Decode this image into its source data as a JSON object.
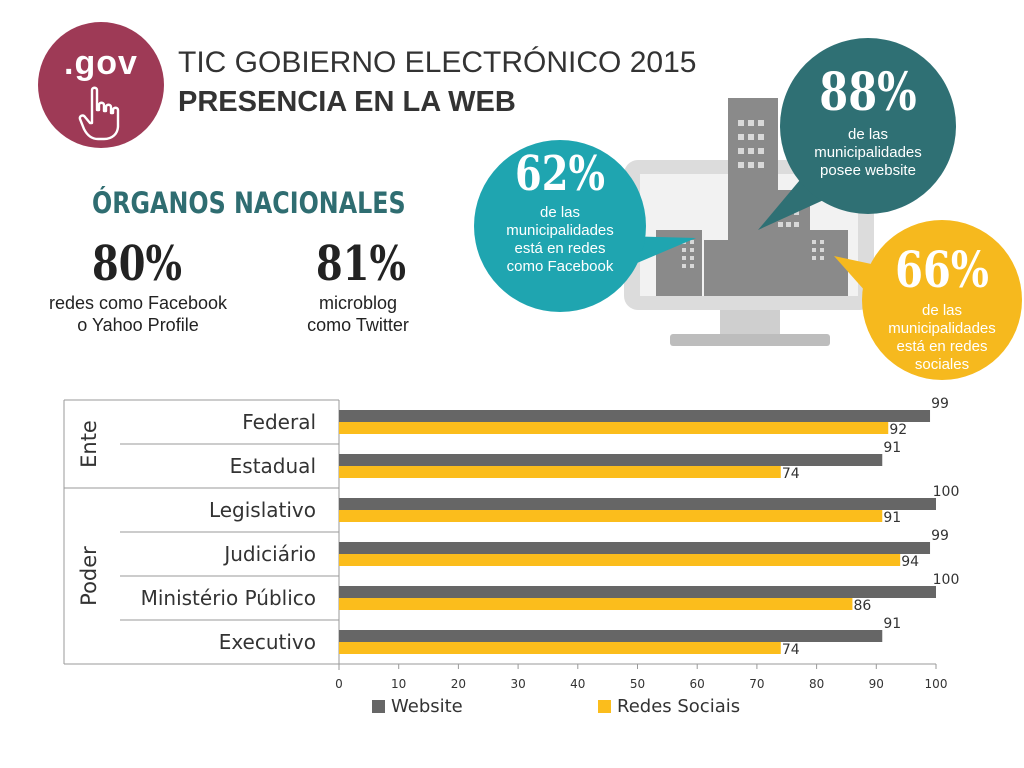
{
  "header": {
    "logo_text": ".gov",
    "title_line1": "TIC GOBIERNO ELECTRÓNICO 2015",
    "title_line2": "PRESENCIA EN LA WEB"
  },
  "organos": {
    "heading": "ÓRGANOS NACIONALES",
    "stat1": {
      "value": "80%",
      "caption_line1": "redes como Facebook",
      "caption_line2": "o Yahoo Profile"
    },
    "stat2": {
      "value": "81%",
      "caption_line1": "microblog",
      "caption_line2": "como Twitter"
    }
  },
  "bubbles": {
    "b62": {
      "value": "62%",
      "lines": [
        "de las",
        "municipalidades",
        "está en redes",
        "como Facebook"
      ],
      "color": "#1fa5b0"
    },
    "b88": {
      "value": "88%",
      "lines": [
        "de las",
        "municipalidades",
        "posee website"
      ],
      "color": "#2f7074"
    },
    "b66": {
      "value": "66%",
      "lines": [
        "de las",
        "municipalidades",
        "está en redes",
        "sociales"
      ],
      "color": "#f6b91e"
    }
  },
  "chart_data": {
    "type": "bar",
    "orientation": "horizontal",
    "groups": [
      {
        "label": "Ente",
        "categories": [
          "Federal",
          "Estadual"
        ]
      },
      {
        "label": "Poder",
        "categories": [
          "Legislativo",
          "Judiciário",
          "Ministério Público",
          "Executivo"
        ]
      }
    ],
    "categories": [
      "Federal",
      "Estadual",
      "Legislativo",
      "Judiciário",
      "Ministério Público",
      "Executivo"
    ],
    "series": [
      {
        "name": "Website",
        "color": "#666666",
        "values": [
          99,
          91,
          100,
          99,
          100,
          91
        ]
      },
      {
        "name": "Redes Sociais",
        "color": "#fbbd1c",
        "values": [
          92,
          74,
          91,
          94,
          86,
          74
        ]
      }
    ],
    "xlim": [
      0,
      100
    ],
    "xticks": [
      0,
      10,
      20,
      30,
      40,
      50,
      60,
      70,
      80,
      90,
      100
    ],
    "legend": "bottom",
    "grid": false
  }
}
